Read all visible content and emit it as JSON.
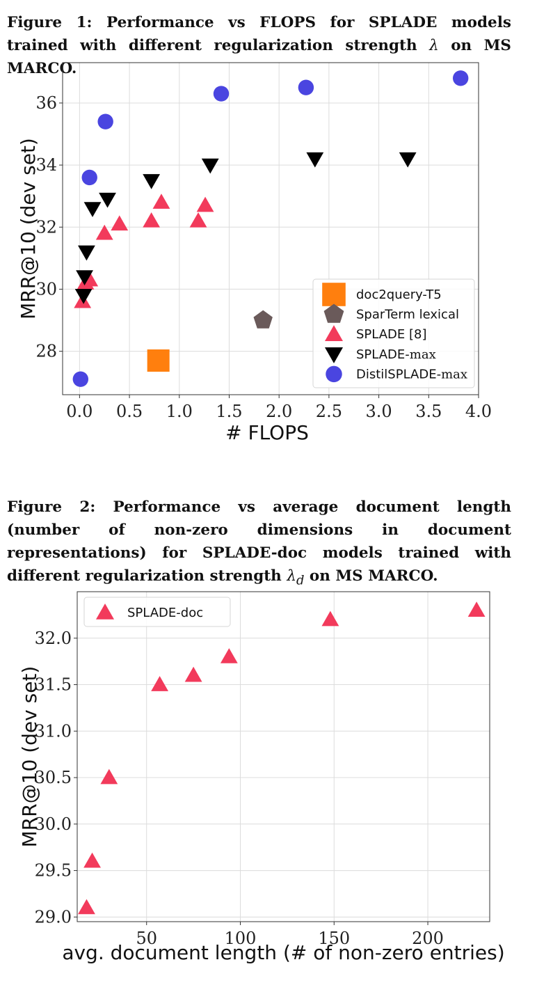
{
  "caption1": {
    "label": "Figure 1:",
    "text_a": "Performance vs FLOPS for SPLADE models trained with different regularization strength",
    "symbol": "λ",
    "text_b": "on MS MARCO."
  },
  "caption2": {
    "label": "Figure 2:",
    "text_a": "Performance vs average document length (number of non-zero dimensions in document representations) for SPLADE-doc models trained with different regularization strength",
    "symbol": "λ",
    "subscript": "d",
    "text_b": "on MS MARCO."
  },
  "colors": {
    "doc2query": "#ff7f0e",
    "sparterm": "#6a5a5a",
    "splade": "#f23a5b",
    "splade_max": "#000000",
    "distil": "#4a45e0",
    "splade_doc": "#f23a5b"
  },
  "chart_data": [
    {
      "type": "scatter",
      "xlabel": "# FLOPS",
      "ylabel": "MRR@10 (dev set)",
      "xlim": [
        -0.17,
        4.0
      ],
      "ylim": [
        26.6,
        37.3
      ],
      "xticks": [
        0.0,
        0.5,
        1.0,
        1.5,
        2.0,
        2.5,
        3.0,
        3.5,
        4.0
      ],
      "xtick_labels": [
        "0.0",
        "0.5",
        "1.0",
        "1.5",
        "2.0",
        "2.5",
        "3.0",
        "3.5",
        "4.0"
      ],
      "yticks": [
        28,
        30,
        32,
        34,
        36
      ],
      "ytick_labels": [
        "28",
        "30",
        "32",
        "34",
        "36"
      ],
      "grid": true,
      "legend_position": "lower-right",
      "series": [
        {
          "name": "doc2query-T5",
          "marker": "square",
          "color": "#ff7f0e",
          "points": [
            [
              0.79,
              27.7
            ]
          ]
        },
        {
          "name": "SparTerm lexical",
          "marker": "pentagon",
          "color": "#6a5a5a",
          "points": [
            [
              1.84,
              29.0
            ]
          ]
        },
        {
          "name": "SPLADE [8]",
          "marker": "triangle-up",
          "color": "#f23a5b",
          "points": [
            [
              0.03,
              29.6
            ],
            [
              0.06,
              30.2
            ],
            [
              0.1,
              30.3
            ],
            [
              0.25,
              31.8
            ],
            [
              0.4,
              32.1
            ],
            [
              0.72,
              32.2
            ],
            [
              0.82,
              32.8
            ],
            [
              1.19,
              32.2
            ],
            [
              1.26,
              32.7
            ]
          ]
        },
        {
          "name": "SPLADE-",
          "name_suffix": "max",
          "marker": "triangle-down",
          "color": "#000000",
          "points": [
            [
              0.04,
              29.8
            ],
            [
              0.05,
              30.4
            ],
            [
              0.07,
              31.2
            ],
            [
              0.13,
              32.6
            ],
            [
              0.28,
              32.9
            ],
            [
              0.72,
              33.5
            ],
            [
              1.31,
              34.0
            ],
            [
              2.36,
              34.2
            ],
            [
              3.29,
              34.2
            ]
          ]
        },
        {
          "name": "DistilSPLADE-",
          "name_suffix": "max",
          "marker": "circle",
          "color": "#4a45e0",
          "points": [
            [
              0.01,
              27.1
            ],
            [
              0.1,
              33.6
            ],
            [
              0.26,
              35.4
            ],
            [
              1.42,
              36.3
            ],
            [
              2.27,
              36.5
            ],
            [
              3.82,
              36.8
            ]
          ]
        }
      ]
    },
    {
      "type": "scatter",
      "xlabel": "avg. document length (# of non-zero entries)",
      "ylabel": "MRR@10 (dev set)",
      "xlim": [
        13,
        233
      ],
      "ylim": [
        28.95,
        32.5
      ],
      "xticks": [
        50,
        100,
        150,
        200
      ],
      "xtick_labels": [
        "50",
        "100",
        "150",
        "200"
      ],
      "yticks": [
        29.0,
        29.5,
        30.0,
        30.5,
        31.0,
        31.5,
        32.0
      ],
      "ytick_labels": [
        "29.0",
        "29.5",
        "30.0",
        "30.5",
        "31.0",
        "31.5",
        "32.0"
      ],
      "grid": true,
      "legend_position": "top-left",
      "series": [
        {
          "name": "SPLADE-doc",
          "marker": "triangle-up",
          "color": "#f23a5b",
          "points": [
            [
              18,
              29.1
            ],
            [
              21,
              29.6
            ],
            [
              30,
              30.5
            ],
            [
              57,
              31.5
            ],
            [
              75,
              31.6
            ],
            [
              94,
              31.8
            ],
            [
              148,
              32.2
            ],
            [
              226,
              32.3
            ]
          ]
        }
      ]
    }
  ]
}
